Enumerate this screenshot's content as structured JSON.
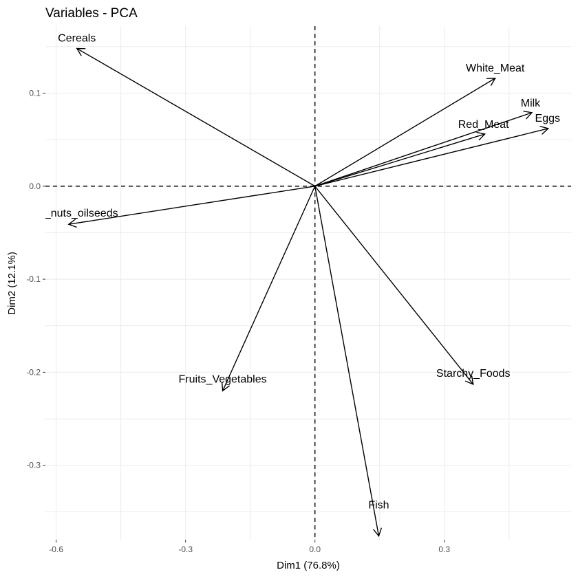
{
  "chart_data": {
    "type": "biplot-arrows",
    "title": "Variables - PCA",
    "xlabel": "Dim1 (76.8%)",
    "ylabel": "Dim2 (12.1%)",
    "xlim": [
      -0.625,
      0.594
    ],
    "ylim": [
      -0.38,
      0.172
    ],
    "xticks": [
      -0.6,
      -0.3,
      0.0,
      0.3
    ],
    "xtick_labels": [
      "-0.6",
      "-0.3",
      "0.0",
      "0.3"
    ],
    "yticks": [
      -0.3,
      -0.2,
      -0.1,
      0.0,
      0.1
    ],
    "ytick_labels": [
      "-0.3",
      "-0.2",
      "-0.1",
      "0.0",
      "0.1"
    ],
    "grid": true,
    "reference_lines": "dashed at x=0 and y=0",
    "arrow_color": "#000000",
    "variables": [
      {
        "name": "Cereals",
        "x": -0.552,
        "y": 0.148
      },
      {
        "name": "White_Meat",
        "x": 0.418,
        "y": 0.116
      },
      {
        "name": "Milk",
        "x": 0.503,
        "y": 0.079
      },
      {
        "name": "Eggs",
        "x": 0.541,
        "y": 0.062
      },
      {
        "name": "Red_Meat",
        "x": 0.394,
        "y": 0.056
      },
      {
        "name": "_nuts_oilseeds",
        "x": -0.571,
        "y": -0.041
      },
      {
        "name": "Fruits_Vegetables",
        "x": -0.214,
        "y": -0.22
      },
      {
        "name": "Starchy_Foods",
        "x": 0.367,
        "y": -0.213
      },
      {
        "name": "Fish",
        "x": 0.148,
        "y": -0.376
      }
    ]
  }
}
